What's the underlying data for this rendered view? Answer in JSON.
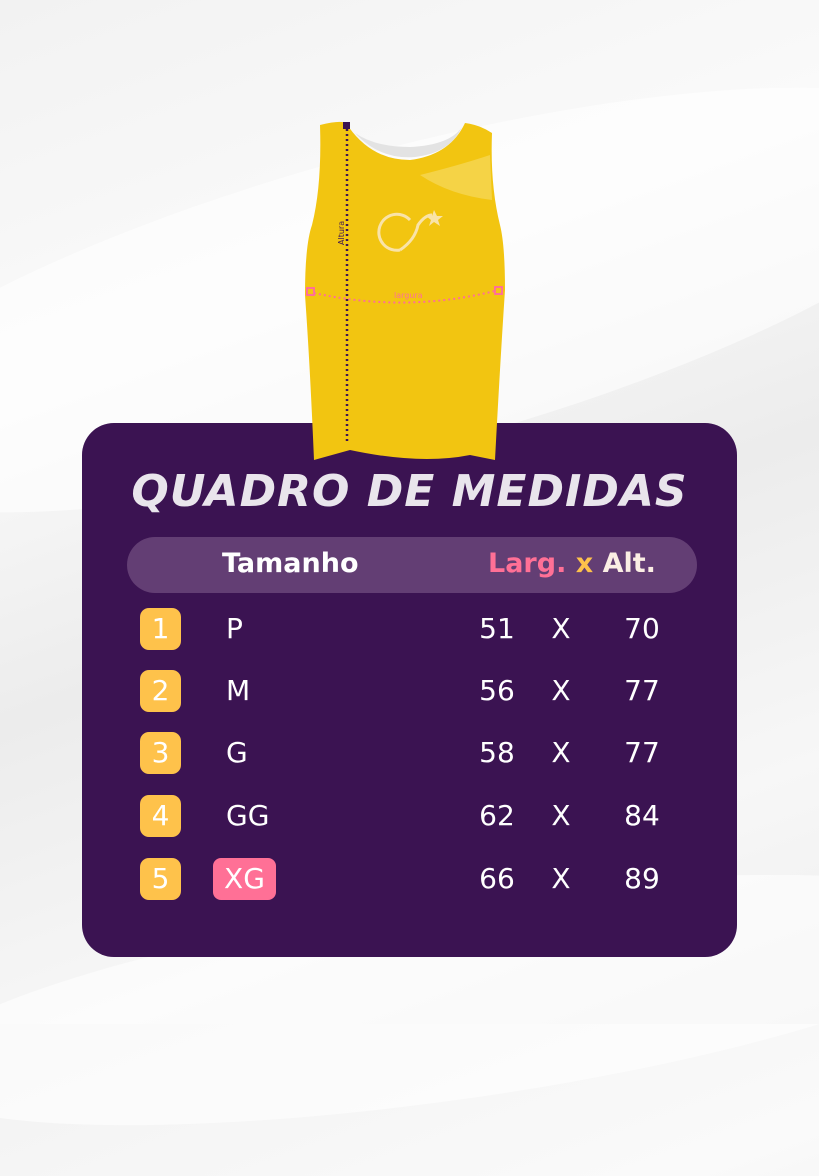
{
  "title": "QUADRO DE MEDIDAS",
  "shirt": {
    "height_label": "Altura",
    "width_label": "largura",
    "color": "#f2c511"
  },
  "header": {
    "size": "Tamanho",
    "width": "Larg.",
    "sep": "x",
    "height": "Alt."
  },
  "colors": {
    "panel": "#3b1352",
    "header": "#633e74",
    "badge": "#fec24b",
    "highlight": "#ff7096",
    "width_label": "#ff7096",
    "sep": "#fec24b"
  },
  "rows": [
    {
      "n": "1",
      "size": "P",
      "w": "51",
      "x": "X",
      "h": "70"
    },
    {
      "n": "2",
      "size": "M",
      "w": "56",
      "x": "X",
      "h": "77"
    },
    {
      "n": "3",
      "size": "G",
      "w": "58",
      "x": "X",
      "h": "77"
    },
    {
      "n": "4",
      "size": "GG",
      "w": "62",
      "x": "X",
      "h": "84"
    },
    {
      "n": "5",
      "size": "XG",
      "w": "66",
      "x": "X",
      "h": "89",
      "highlighted": true
    }
  ]
}
